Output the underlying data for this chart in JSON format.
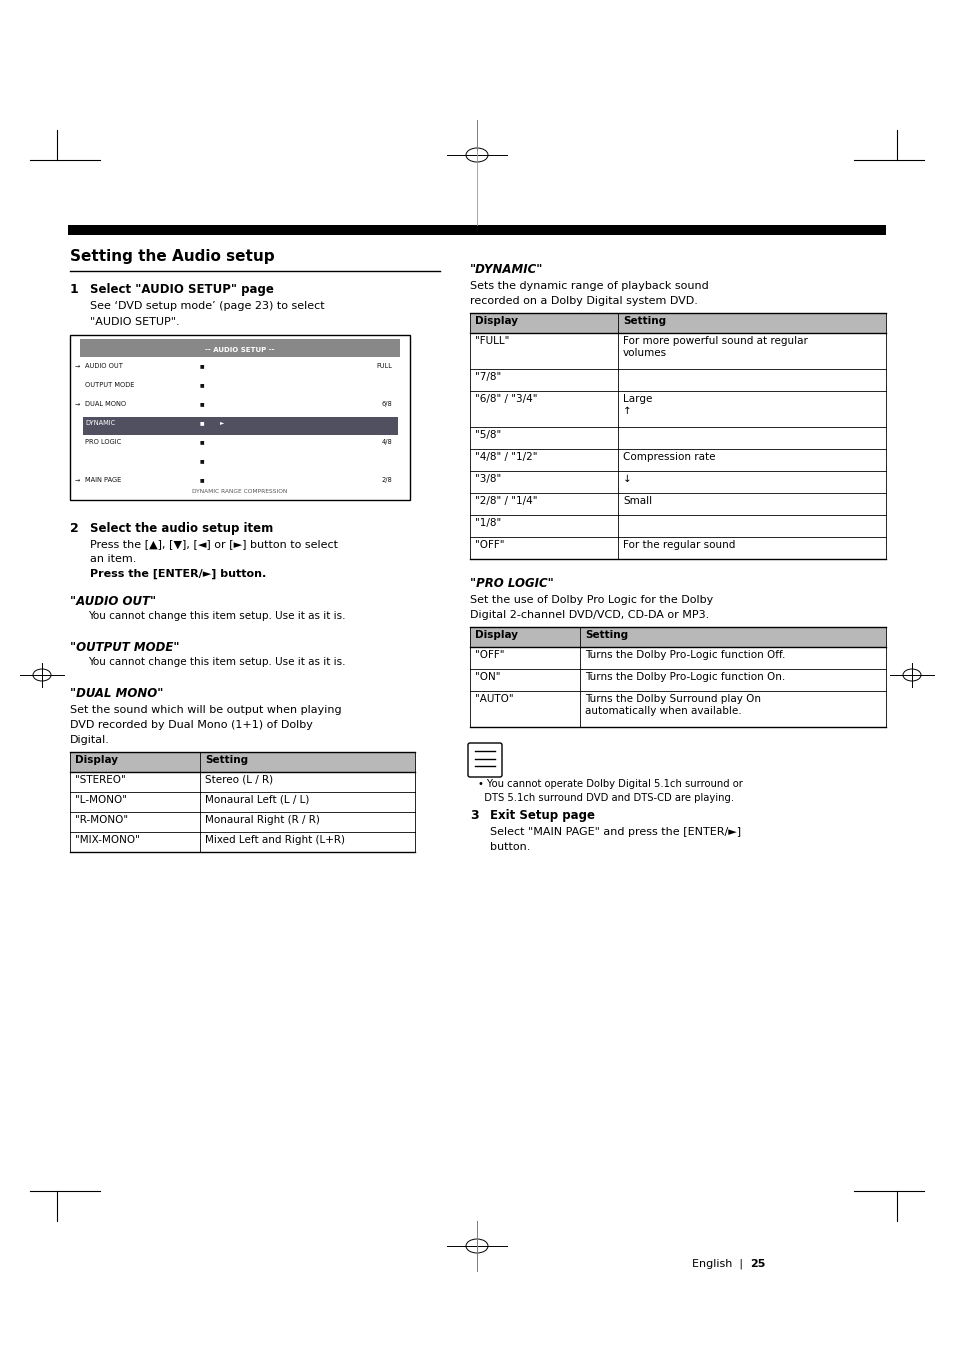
{
  "bg_color": "#ffffff",
  "page_width": 9.54,
  "page_height": 13.51,
  "main_title": "Setting the Audio setup",
  "step1_bold": "Select \"AUDIO SETUP\" page",
  "step1_text1": "See ‘DVD setup mode’ (page 23) to select",
  "step1_text2": "\"AUDIO SETUP\".",
  "step2_bold": "Select the audio setup item",
  "step2_text1": "Press the [▲], [▼], [◄] or [►] button to select",
  "step2_text2": "an item.",
  "step2_text3": "Press the [ENTER/►] button.",
  "audio_out_head": "\"AUDIO OUT\"",
  "audio_out_text": "You cannot change this item setup. Use it as it is.",
  "output_mode_head": "\"OUTPUT MODE\"",
  "output_mode_text": "You cannot change this item setup. Use it as it is.",
  "dual_mono_head": "\"DUAL MONO\"",
  "dual_mono_text1": "Set the sound which will be output when playing",
  "dual_mono_text2": "DVD recorded by Dual Mono (1+1) of Dolby",
  "dual_mono_text3": "Digital.",
  "dual_mono_table_headers": [
    "Display",
    "Setting"
  ],
  "dual_mono_table_rows": [
    [
      "\"STEREO\"",
      "Stereo (L / R)"
    ],
    [
      "\"L-MONO\"",
      "Monaural Left (L / L)"
    ],
    [
      "\"R-MONO\"",
      "Monaural Right (R / R)"
    ],
    [
      "\"MIX-MONO\"",
      "Mixed Left and Right (L+R)"
    ]
  ],
  "dynamic_head": "\"DYNAMIC\"",
  "dynamic_text1": "Sets the dynamic range of playback sound",
  "dynamic_text2": "recorded on a Dolby Digital system DVD.",
  "dynamic_table_headers": [
    "Display",
    "Setting"
  ],
  "dynamic_table_rows": [
    [
      "\"FULL\"",
      "For more powerful sound at regular\nvolumes",
      0.36
    ],
    [
      "\"7/8\"",
      "",
      0.22
    ],
    [
      "\"6/8\" / \"3/4\"",
      "Large\n↑",
      0.36
    ],
    [
      "\"5/8\"",
      "",
      0.22
    ],
    [
      "\"4/8\" / \"1/2\"",
      "Compression rate",
      0.22
    ],
    [
      "\"3/8\"",
      "↓",
      0.22
    ],
    [
      "\"2/8\" / \"1/4\"",
      "Small",
      0.22
    ],
    [
      "\"1/8\"",
      "",
      0.22
    ],
    [
      "\"OFF\"",
      "For the regular sound",
      0.22
    ]
  ],
  "pro_logic_head": "\"PRO LOGIC\"",
  "pro_logic_text1": "Set the use of Dolby Pro Logic for the Dolby",
  "pro_logic_text2": "Digital 2-channel DVD/VCD, CD-DA or MP3.",
  "pro_logic_table_headers": [
    "Display",
    "Setting"
  ],
  "pro_logic_table_rows": [
    [
      "\"OFF\"",
      "Turns the Dolby Pro-Logic function Off.",
      0.22
    ],
    [
      "\"ON\"",
      "Turns the Dolby Pro-Logic function On.",
      0.22
    ],
    [
      "\"AUTO\"",
      "Turns the Dolby Surround play On\nautomatically when available.",
      0.36
    ]
  ],
  "note_line1": "• You cannot operate Dolby Digital 5.1ch surround or",
  "note_line2": "  DTS 5.1ch surround DVD and DTS-CD are playing.",
  "step3_bold": "Exit Setup page",
  "step3_text1": "Select \"MAIN PAGE\" and press the [ENTER/►]",
  "step3_text2": "button.",
  "table_header_bg": "#b8b8b8",
  "table_border_color": "#000000"
}
